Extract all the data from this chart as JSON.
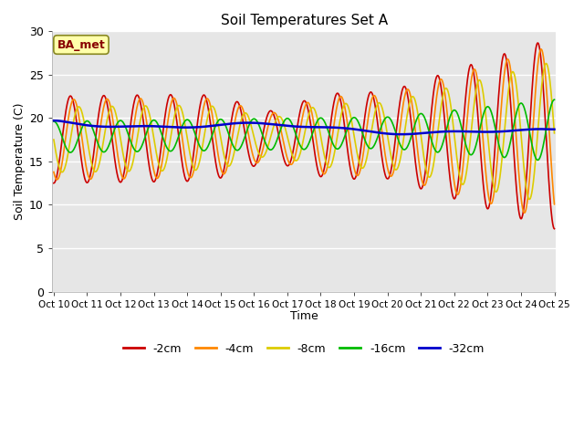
{
  "title": "Soil Temperatures Set A",
  "xlabel": "Time",
  "ylabel": "Soil Temperature (C)",
  "ylim": [
    0,
    30
  ],
  "yticks": [
    0,
    5,
    10,
    15,
    20,
    25,
    30
  ],
  "legend_label": "BA_met",
  "series_labels": [
    "-2cm",
    "-4cm",
    "-8cm",
    "-16cm",
    "-32cm"
  ],
  "series_colors": [
    "#cc0000",
    "#ff8800",
    "#ddcc00",
    "#00bb00",
    "#0000cc"
  ],
  "bg_color": "#e6e6e6",
  "fig_bg": "#ffffff",
  "num_points": 1500,
  "t_start": 10.0,
  "t_end": 25.0,
  "xtick_vals": [
    10,
    11,
    12,
    13,
    14,
    15,
    16,
    17,
    18,
    19,
    20,
    21,
    22,
    23,
    24,
    25
  ]
}
